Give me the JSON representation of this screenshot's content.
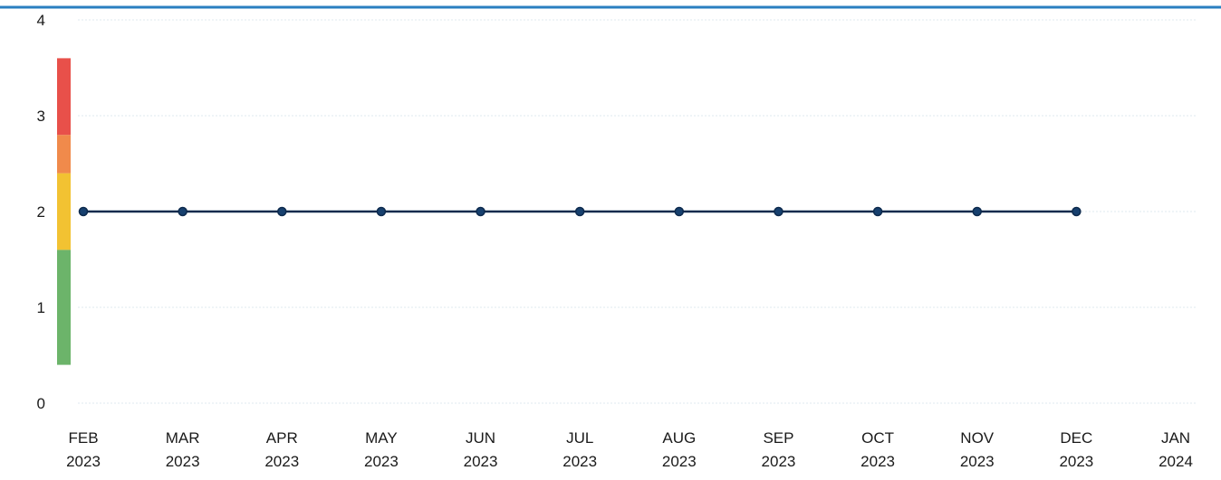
{
  "chart_data": {
    "type": "line",
    "title": "",
    "xlabel": "",
    "ylabel": "",
    "ylim": [
      0,
      4
    ],
    "y_ticks": [
      "0",
      "1",
      "2",
      "3",
      "4"
    ],
    "x_ticks": [
      {
        "month": "FEB",
        "year": "2023"
      },
      {
        "month": "MAR",
        "year": "2023"
      },
      {
        "month": "APR",
        "year": "2023"
      },
      {
        "month": "MAY",
        "year": "2023"
      },
      {
        "month": "JUN",
        "year": "2023"
      },
      {
        "month": "JUL",
        "year": "2023"
      },
      {
        "month": "AUG",
        "year": "2023"
      },
      {
        "month": "SEP",
        "year": "2023"
      },
      {
        "month": "OCT",
        "year": "2023"
      },
      {
        "month": "NOV",
        "year": "2023"
      },
      {
        "month": "DEC",
        "year": "2023"
      },
      {
        "month": "JAN",
        "year": "2024"
      }
    ],
    "series": [
      {
        "x": [
          "2023-02",
          "2023-03",
          "2023-04",
          "2023-05",
          "2023-06",
          "2023-07",
          "2023-08",
          "2023-09",
          "2023-10",
          "2023-11",
          "2023-12"
        ],
        "values": [
          2,
          2,
          2,
          2,
          2,
          2,
          2,
          2,
          2,
          2,
          2
        ],
        "color": "#0d2a4d"
      }
    ],
    "risk_band": [
      {
        "from": 0.4,
        "to": 1.6,
        "color": "#6cb46a"
      },
      {
        "from": 1.6,
        "to": 2.4,
        "color": "#f2c232"
      },
      {
        "from": 2.4,
        "to": 2.8,
        "color": "#f08a4b"
      },
      {
        "from": 2.8,
        "to": 3.6,
        "color": "#e8504a"
      }
    ],
    "grid": true,
    "legend": "none",
    "colors": {
      "top_border": "#2a7fc0",
      "grid": "#dfe8ef",
      "line": "#0d2a4d"
    }
  }
}
